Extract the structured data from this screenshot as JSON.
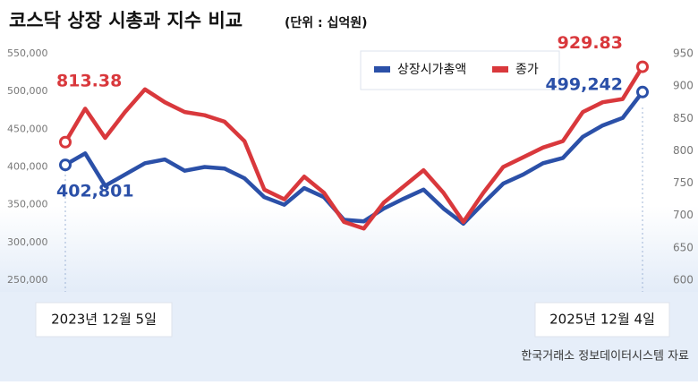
{
  "chart_data": {
    "type": "line",
    "title": "코스닥 상장 시총과 지수 비교",
    "subtitle": "(단위 : 십억원)",
    "source": "한국거래소 정보데이터시스템 자료",
    "categories": [
      "2023년 12월 5일",
      null,
      null,
      null,
      null,
      null,
      null,
      null,
      null,
      null,
      null,
      null,
      null,
      null,
      null,
      null,
      null,
      null,
      null,
      null,
      null,
      null,
      null,
      null,
      null,
      null,
      null,
      null,
      null,
      "2025년 12월 4일"
    ],
    "series": [
      {
        "name": "상장시가총액",
        "color": "#2b50a8",
        "axis": "y",
        "values": [
          402801,
          418000,
          375000,
          390000,
          405000,
          410000,
          395000,
          400000,
          398000,
          385000,
          360000,
          350000,
          372000,
          360000,
          330000,
          328000,
          345000,
          358000,
          370000,
          345000,
          325000,
          352000,
          378000,
          390000,
          405000,
          412000,
          440000,
          455000,
          465000,
          499242
        ],
        "value_labels": [
          "402,801",
          null,
          null,
          null,
          null,
          null,
          null,
          null,
          null,
          null,
          null,
          null,
          null,
          null,
          null,
          null,
          null,
          null,
          null,
          null,
          null,
          null,
          null,
          null,
          null,
          null,
          null,
          null,
          null,
          "499,242"
        ]
      },
      {
        "name": "종가",
        "color": "#d9383c",
        "axis": "y2",
        "values": [
          813.38,
          865,
          820,
          860,
          895,
          875,
          860,
          855,
          845,
          815,
          740,
          725,
          760,
          735,
          690,
          680,
          720,
          745,
          770,
          735,
          690,
          735,
          775,
          790,
          805,
          815,
          860,
          875,
          880,
          929.83
        ],
        "value_labels": [
          "813.38",
          null,
          null,
          null,
          null,
          null,
          null,
          null,
          null,
          null,
          null,
          null,
          null,
          null,
          null,
          null,
          null,
          null,
          null,
          null,
          null,
          null,
          null,
          null,
          null,
          null,
          null,
          null,
          null,
          "929.83"
        ]
      }
    ],
    "ylim": [
      250000,
      550000
    ],
    "yticks": [
      {
        "value": 250000,
        "label": "250,000"
      },
      {
        "value": 300000,
        "label": "300,000"
      },
      {
        "value": 350000,
        "label": "350,000"
      },
      {
        "value": 400000,
        "label": "400,000"
      },
      {
        "value": 450000,
        "label": "450,000"
      },
      {
        "value": 500000,
        "label": "500,000"
      },
      {
        "value": 550000,
        "label": "550,000"
      }
    ],
    "y2lim": [
      600,
      950
    ],
    "y2ticks": [
      600,
      650,
      700,
      750,
      800,
      850,
      900,
      950
    ],
    "legend": "top-right"
  }
}
